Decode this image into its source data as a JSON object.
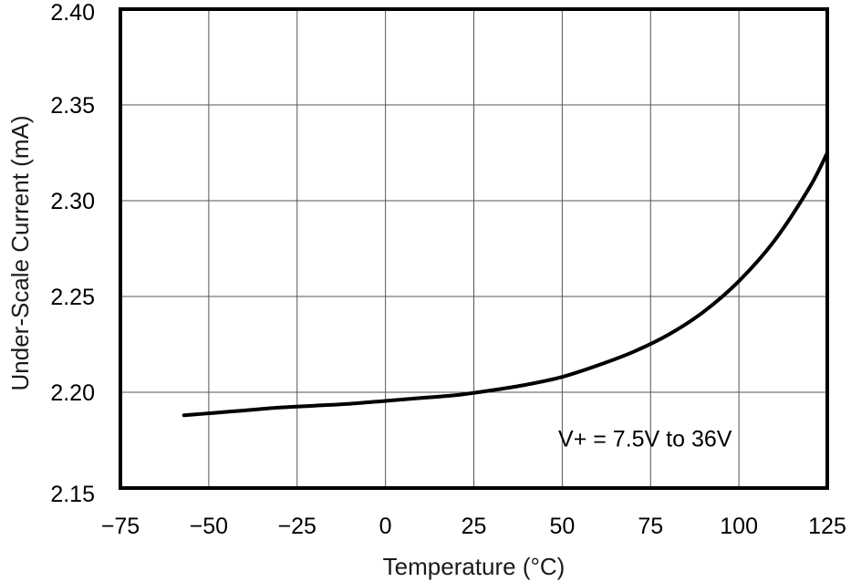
{
  "chart_data": {
    "type": "line",
    "title": "",
    "xlabel": "Temperature (°C)",
    "ylabel": "Under-Scale Current (mA)",
    "xlim": [
      -75,
      125
    ],
    "ylim": [
      2.15,
      2.4
    ],
    "x_ticks": [
      -75,
      -50,
      -25,
      0,
      25,
      50,
      75,
      100,
      125
    ],
    "x_tick_labels": [
      "−75",
      "−50",
      "−25",
      "0",
      "25",
      "50",
      "75",
      "100",
      "125"
    ],
    "y_ticks": [
      2.15,
      2.2,
      2.25,
      2.3,
      2.35,
      2.4
    ],
    "y_tick_labels": [
      "2.15",
      "2.20",
      "2.25",
      "2.30",
      "2.35",
      "2.40"
    ],
    "grid": true,
    "series": [
      {
        "name": "V+ = 7.5V to 36V",
        "color": "#000000",
        "x": [
          -57,
          -50,
          -40,
          -30,
          -20,
          -10,
          0,
          10,
          20,
          30,
          40,
          50,
          60,
          70,
          80,
          90,
          100,
          110,
          120,
          125
        ],
        "y": [
          2.188,
          2.189,
          2.1905,
          2.192,
          2.193,
          2.194,
          2.1955,
          2.197,
          2.1985,
          2.201,
          2.204,
          2.208,
          2.214,
          2.221,
          2.23,
          2.242,
          2.258,
          2.279,
          2.307,
          2.325
        ]
      }
    ],
    "annotations": [
      {
        "text": "V+ = 7.5V to 36V",
        "x": 75,
        "y": 2.176
      }
    ]
  }
}
